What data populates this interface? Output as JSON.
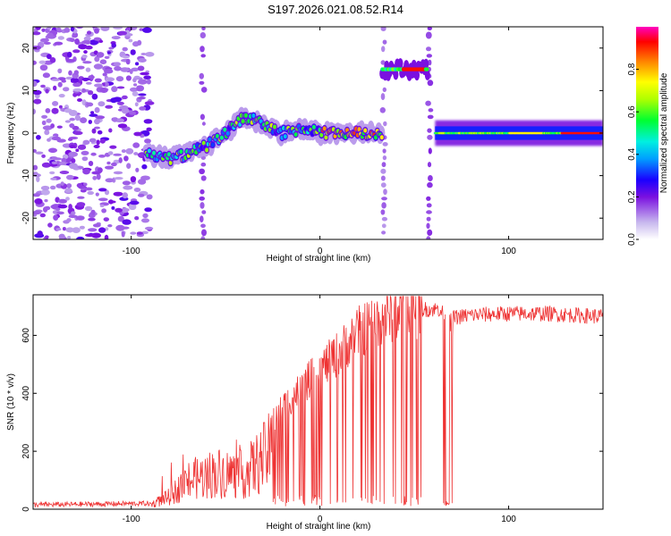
{
  "title": "S197.2026.021.08.52.R14",
  "chart_data": [
    {
      "type": "heatmap",
      "name": "spectrogram",
      "xlabel": "Height of straight line (km)",
      "ylabel": "Frequency (Hz)",
      "xlim": [
        -152,
        150
      ],
      "ylim": [
        -25,
        25
      ],
      "xticks": [
        -100,
        0,
        100
      ],
      "yticks": [
        -20,
        -10,
        0,
        10,
        20
      ],
      "colorbar": {
        "label": "Normalized spectral amplitude",
        "range": [
          0,
          1
        ],
        "ticks": [
          "0.0",
          "0.2",
          "0.4",
          "0.6",
          "0.8"
        ],
        "tick_values": [
          0,
          0.2,
          0.4,
          0.6,
          0.8
        ],
        "colors": [
          "#ffffff",
          "#b89cf0",
          "#6a00e0",
          "#0000ff",
          "#00c8ff",
          "#00ff40",
          "#ffff00",
          "#ff8000",
          "#ff0000",
          "#ff00c0"
        ]
      },
      "features": [
        {
          "desc": "noise",
          "x": [
            -152,
            -90
          ],
          "amp": 0.25
        },
        {
          "desc": "tone wandering",
          "points": [
            [
              -92,
              -5
            ],
            [
              -80,
              -6
            ],
            [
              -70,
              -5
            ],
            [
              -60,
              -3
            ],
            [
              -50,
              0
            ],
            [
              -40,
              4
            ],
            [
              -30,
              2
            ],
            [
              -20,
              0
            ],
            [
              -10,
              1
            ],
            [
              0,
              0
            ],
            [
              10,
              0
            ],
            [
              20,
              0
            ],
            [
              33,
              0
            ]
          ]
        },
        {
          "desc": "tone high",
          "x": [
            33,
            57
          ],
          "y": 15
        },
        {
          "desc": "tone flat",
          "x": [
            61,
            150
          ],
          "y": 0
        }
      ]
    },
    {
      "type": "line",
      "name": "snr",
      "xlabel": "Height of straight line (km)",
      "ylabel": "SNR (10 * v/v)",
      "xlim": [
        -152,
        150
      ],
      "ylim": [
        0,
        740
      ],
      "xticks": [
        -100,
        0,
        100
      ],
      "yticks": [
        0,
        200,
        400,
        600
      ],
      "color": "#ee3333",
      "profile": {
        "x": [
          -152,
          -90,
          -80,
          -70,
          -55,
          -40,
          -30,
          -20,
          -10,
          0,
          10,
          20,
          30,
          40,
          50,
          60,
          66,
          70,
          80,
          100,
          120,
          150
        ],
        "y": [
          15,
          20,
          60,
          140,
          180,
          170,
          250,
          350,
          420,
          480,
          540,
          610,
          650,
          680,
          690,
          690,
          690,
          660,
          670,
          675,
          675,
          665
        ]
      }
    }
  ]
}
